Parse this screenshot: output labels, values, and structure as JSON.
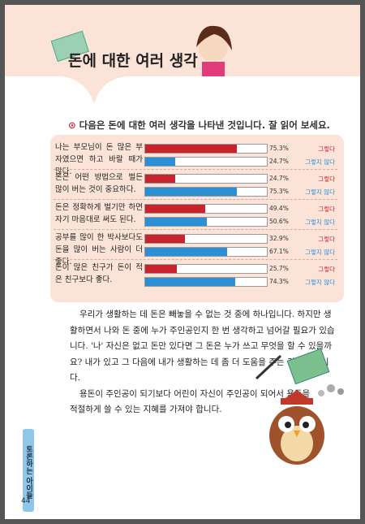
{
  "header": {
    "title": "돈에 대한 여러 생각"
  },
  "instruction": "다음은 돈에 대한 여러 생각을 나타낸 것입니다. 잘 읽어 보세요.",
  "chart_data": {
    "type": "bar",
    "orientation": "horizontal",
    "categories": [
      "나는 부모님이 돈 많은 부자였으면 하고 바랄 때가 많다.",
      "돈은 어떤 방법으로 벌든 많이 버는 것이 중요하다.",
      "돈은 정확하게 벌기만 하면 자기 마음대로 써도 된다.",
      "공부를 많이 한 박사보다도 돈을 많이 버는 사람이 더 좋다.",
      "돈이 많은 친구가 돈이 적은 친구보다 좋다."
    ],
    "xlim": [
      0,
      100
    ],
    "series": [
      {
        "name": "그렇다",
        "color": "#c8232c",
        "values": [
          75.3,
          24.7,
          49.4,
          32.9,
          25.7
        ],
        "value_labels": [
          "75.3%",
          "24.7%",
          "49.4%",
          "32.9%",
          "25.7%"
        ]
      },
      {
        "name": "그렇지 않다",
        "color": "#2b8fd6",
        "values": [
          24.7,
          75.3,
          50.6,
          67.1,
          74.3
        ],
        "value_labels": [
          "24.7%",
          "75.3%",
          "50.6%",
          "67.1%",
          "74.3%"
        ]
      }
    ]
  },
  "body": {
    "paragraphs": [
      "우리가 생활하는 데 돈은 빼놓을 수 없는 것 중에 하나입니다. 하지만 생활하면서 나와 돈 중에 누가 주인공인지 한 번 생각하고 넘어갈 필요가 있습니다. '나' 자신은 없고 돈만 있다면 그 돈은 누가 쓰고 무엇을 할 수 있을까요? 내가 있고 그 다음에 내가 생활하는 데 좀 더 도움을 주는 것이 돈입니다.",
      "용돈이 주인공이 되기보다 어린이 자신이 주인공이 되어서 용돈을 적절하게 쓸 수 있는 지혜를 가져야 합니다."
    ]
  },
  "sidebar": {
    "label": "토론하는 아이들",
    "page_number": "44"
  }
}
